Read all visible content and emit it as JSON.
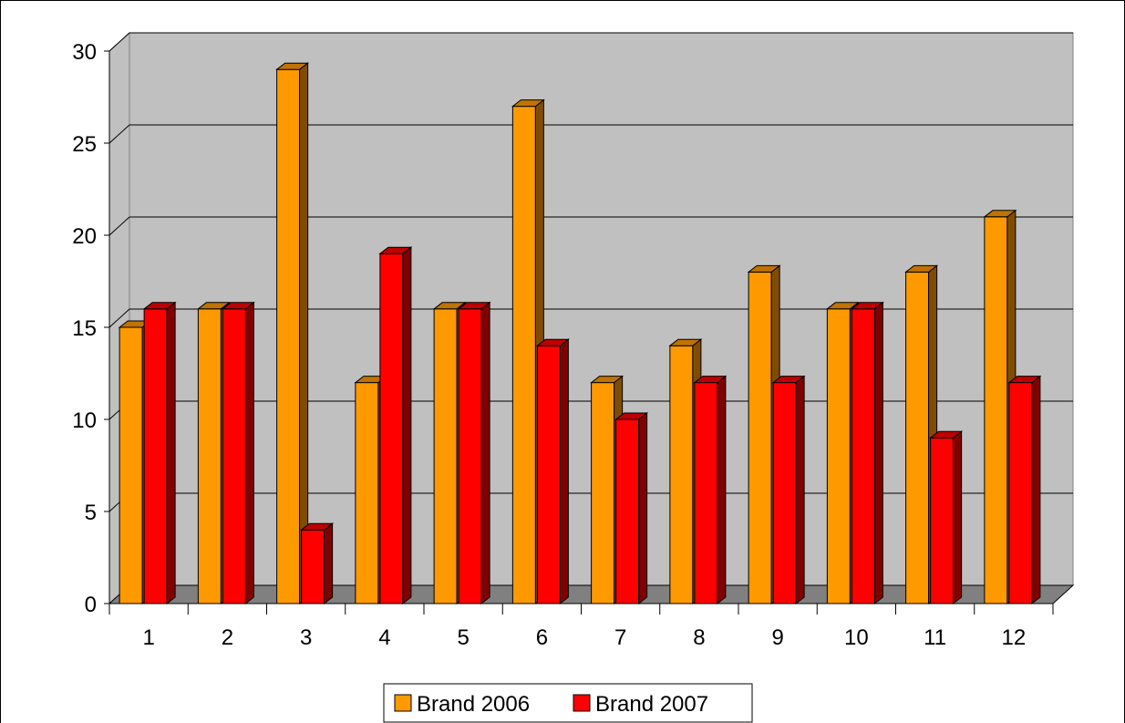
{
  "chart_data": {
    "type": "bar",
    "style": "3d-clustered-column",
    "title": "",
    "xlabel": "",
    "ylabel": "",
    "categories": [
      "1",
      "2",
      "3",
      "4",
      "5",
      "6",
      "7",
      "8",
      "9",
      "10",
      "11",
      "12"
    ],
    "series": [
      {
        "name": "Brand 2006",
        "color": "#FF9900",
        "values": [
          15,
          16,
          29,
          12,
          16,
          27,
          12,
          14,
          18,
          16,
          18,
          21
        ]
      },
      {
        "name": "Brand 2007",
        "color": "#FF0000",
        "values": [
          16,
          16,
          4,
          19,
          16,
          14,
          10,
          12,
          12,
          16,
          9,
          12
        ]
      }
    ],
    "ylim": [
      0,
      30
    ],
    "yticks": [
      0,
      5,
      10,
      15,
      20,
      25,
      30
    ],
    "grid": true,
    "wall_color": "#C0C0C0",
    "floor_color": "#808080",
    "legend_position": "bottom"
  }
}
